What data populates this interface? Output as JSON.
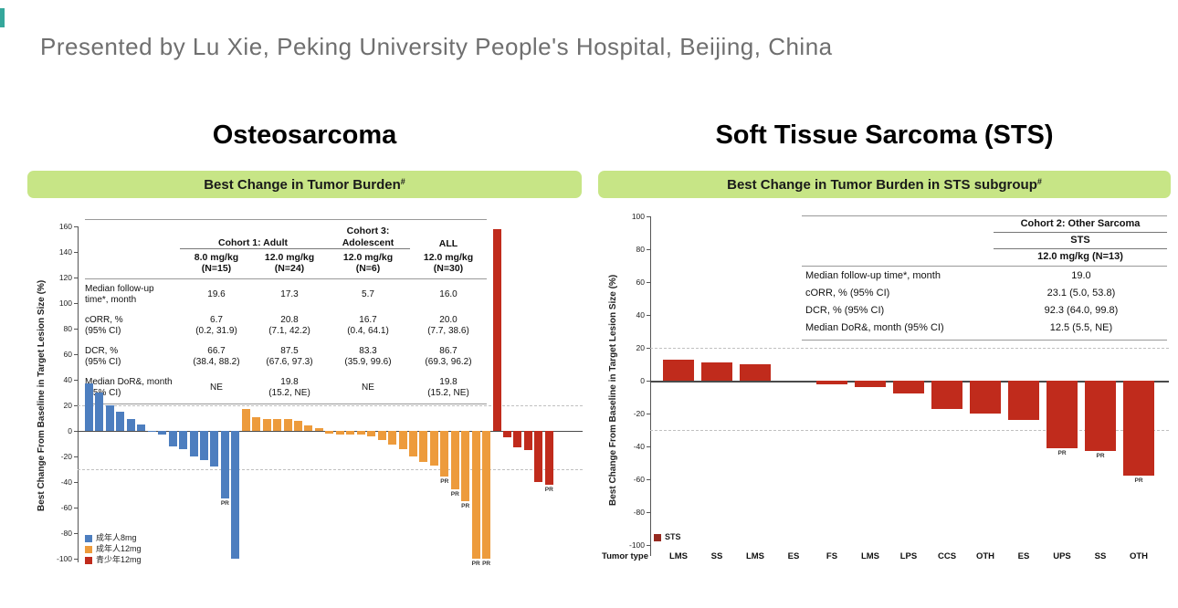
{
  "page": {
    "presented_by": "Presented by Lu Xie, Peking University People's Hospital, Beijing, China"
  },
  "left_panel": {
    "title": "Osteosarcoma",
    "banner": {
      "text": "Best Change in Tumor Burden",
      "sup": "#"
    },
    "table": {
      "col_headers": {
        "cohort1": "Cohort 1: Adult",
        "cohort3": "Cohort 3:\nAdolescent",
        "all": "ALL"
      },
      "sub_headers": [
        "8.0 mg/kg\n(N=15)",
        "12.0 mg/kg\n(N=24)",
        "12.0 mg/kg\n(N=6)",
        "12.0 mg/kg\n(N=30)"
      ],
      "rows": [
        {
          "label": "Median follow-up\ntime*, month",
          "values": [
            "19.6",
            "17.3",
            "5.7",
            "16.0"
          ]
        },
        {
          "label": "cORR, %\n(95% CI)",
          "values": [
            "6.7\n(0.2, 31.9)",
            "20.8\n(7.1, 42.2)",
            "16.7\n(0.4, 64.1)",
            "20.0\n(7.7, 38.6)"
          ]
        },
        {
          "label": "DCR, %\n(95% CI)",
          "values": [
            "66.7\n(38.4, 88.2)",
            "87.5\n(67.6, 97.3)",
            "83.3\n(35.9, 99.6)",
            "86.7\n(69.3, 96.2)"
          ]
        },
        {
          "label": "Median DoR&, month\n(95% CI)",
          "values": [
            "NE",
            "19.8\n(15.2, NE)",
            "NE",
            "19.8\n(15.2, NE)"
          ]
        }
      ]
    }
  },
  "right_panel": {
    "title": "Soft Tissue Sarcoma (STS)",
    "banner": {
      "text": "Best Change in Tumor Burden in STS subgroup",
      "sup": "#"
    },
    "table": {
      "header1": "Cohort 2: Other Sarcoma",
      "header2": "STS",
      "header3": "12.0 mg/kg (N=13)",
      "rows": [
        {
          "label": "Median follow-up time*, month",
          "value": "19.0"
        },
        {
          "label": "cORR, % (95% CI)",
          "value": "23.1 (5.0, 53.8)"
        },
        {
          "label": "DCR, % (95% CI)",
          "value": "92.3 (64.0, 99.8)"
        },
        {
          "label": "Median DoR&, month (95% CI)",
          "value": "12.5 (5.5, NE)"
        }
      ]
    }
  },
  "chart_data": [
    {
      "type": "bar",
      "title": "Best Change in Tumor Burden (Osteosarcoma waterfall)",
      "ylabel": "Best Change From Baseline in Target Lesion Size (%)",
      "ylim": [
        -100,
        160
      ],
      "yticks": [
        160,
        140,
        120,
        100,
        80,
        60,
        40,
        20,
        0,
        -20,
        -40,
        -60,
        -80,
        -100
      ],
      "ref_lines": [
        20,
        -30
      ],
      "grid": "dashed-thresholds",
      "legend_position": "bottom-left",
      "response_label": "PR",
      "series": [
        {
          "name": "成年人8mg",
          "color": "#4d7ebf",
          "values": [
            37,
            30,
            20,
            15,
            9,
            5,
            -1,
            -3,
            -12,
            -14,
            -20,
            -23,
            -28,
            -53,
            -100
          ],
          "pr_indices": [
            13
          ]
        },
        {
          "name": "成年人12mg",
          "color": "#ed9b3c",
          "values": [
            17,
            11,
            9,
            9,
            9,
            8,
            4,
            2,
            -2,
            -3,
            -3,
            -3,
            -4,
            -7,
            -11,
            -14,
            -20,
            -24,
            -27,
            -36,
            -46,
            -55,
            -100,
            -100
          ],
          "pr_indices": [
            19,
            20,
            21,
            22,
            23
          ]
        },
        {
          "name": "青少年12mg",
          "color": "#c02b1c",
          "values": [
            158,
            -5,
            -13,
            -15,
            -40,
            -42
          ],
          "pr_indices": [
            5
          ]
        }
      ]
    },
    {
      "type": "bar",
      "title": "Best Change in Tumor Burden in STS subgroup (waterfall)",
      "ylabel": "Best Change From Baseline in Target Lesion Size (%)",
      "xlabel": "Tumor type",
      "ylim": [
        -100,
        100
      ],
      "yticks": [
        100,
        80,
        60,
        40,
        20,
        0,
        -20,
        -40,
        -60,
        -80,
        -100
      ],
      "ref_lines": [
        20,
        -30
      ],
      "grid": "dashed-thresholds",
      "legend_position": "bottom-left",
      "response_label": "PR",
      "categories": [
        "LMS",
        "SS",
        "LMS",
        "ES",
        "FS",
        "LMS",
        "LPS",
        "CCS",
        "OTH",
        "ES",
        "UPS",
        "SS",
        "OTH"
      ],
      "series": [
        {
          "name": "STS",
          "color": "#c02b1c",
          "legend_color": "#962a20",
          "values": [
            13,
            11,
            10,
            0,
            -2,
            -4,
            -8,
            -17,
            -20,
            -24,
            -41,
            -43,
            -58
          ],
          "pr_indices": [
            10,
            11,
            12
          ]
        }
      ]
    }
  ]
}
